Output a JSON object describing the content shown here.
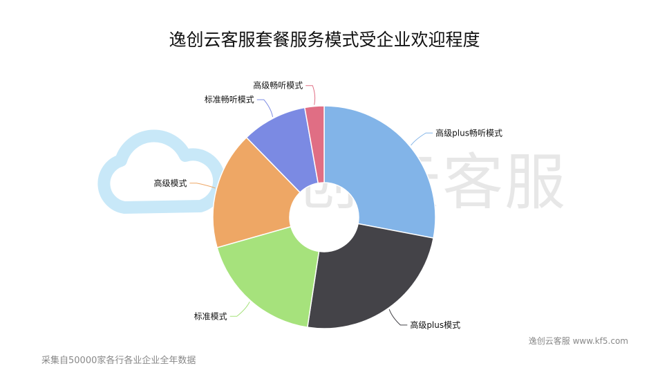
{
  "chart_data": {
    "type": "pie",
    "subtype": "donut",
    "title": "逸创云客服套餐服务模式受企业欢迎程度",
    "categories": [
      "高级plus畅听模式",
      "高级plus模式",
      "标准模式",
      "高级模式",
      "标准畅听模式",
      "高级畅听模式"
    ],
    "values": [
      28,
      24.4,
      18.2,
      17.1,
      9.5,
      2.8
    ],
    "unit": "percent (estimated)",
    "colors": [
      "#82b4e8",
      "#444348",
      "#a6e27c",
      "#eea765",
      "#7b8ae3",
      "#e06e84"
    ],
    "legend": "none (leader-line labels)"
  },
  "watermark": {
    "text": "逸创·云客服",
    "icon": "cloud-icon",
    "icon_color": "#c8e8f8"
  },
  "footer": {
    "note": "采集自50000家各行各业企业全年数据",
    "brand": "逸创云客服 www.kf5.com"
  }
}
